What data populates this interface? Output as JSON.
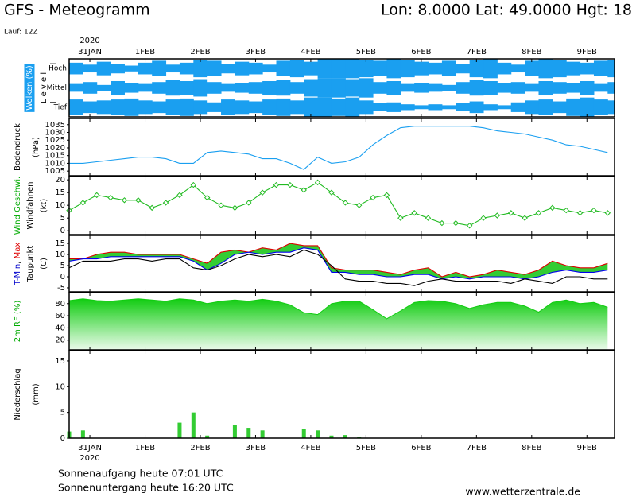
{
  "header": {
    "title": "GFS - Meteogramm",
    "location": "Lon: 8.0000 Lat: 49.0000 Hgt: 18",
    "run": "Lauf: 12Z"
  },
  "chart_data": {
    "type": "meteogram",
    "xlim": [
      0,
      237
    ],
    "x": [
      0,
      6,
      12,
      18,
      24,
      30,
      36,
      42,
      48,
      54,
      60,
      66,
      72,
      78,
      84,
      90,
      96,
      102,
      108,
      114,
      120,
      126,
      132,
      138,
      144,
      150,
      156,
      162,
      168,
      174,
      180,
      186,
      192,
      198,
      204,
      210,
      216,
      222,
      228,
      234
    ],
    "xticks": [
      {
        "value": 9,
        "label": "31JAN"
      },
      {
        "value": 33,
        "label": "1FEB"
      },
      {
        "value": 57,
        "label": "2FEB"
      },
      {
        "value": 81,
        "label": "3FEB"
      },
      {
        "value": 105,
        "label": "4FEB"
      },
      {
        "value": 129,
        "label": "5FEB"
      },
      {
        "value": 153,
        "label": "6FEB"
      },
      {
        "value": 177,
        "label": "7FEB"
      },
      {
        "value": 201,
        "label": "8FEB"
      },
      {
        "value": 225,
        "label": "9FEB"
      }
    ],
    "year_tick": {
      "value": 9,
      "label": "2020"
    },
    "panels": [
      {
        "type": "clouds",
        "cloud_color": "#1a9ff0",
        "ylabel": [
          [
            {
              "text": "Wolken (%)"
            }
          ],
          [
            {
              "text": "L e v e l"
            }
          ]
        ],
        "rows": [
          {
            "name": "Hoch",
            "values": [
              60,
              40,
              70,
              50,
              30,
              60,
              80,
              40,
              60,
              90,
              80,
              50,
              70,
              60,
              40,
              80,
              90,
              70,
              100,
              100,
              100,
              90,
              80,
              100,
              90,
              70,
              60,
              80,
              50,
              90,
              100,
              60,
              40,
              80,
              100,
              90,
              70,
              60,
              80,
              90
            ]
          },
          {
            "name": "Mittel",
            "values": [
              40,
              60,
              30,
              70,
              50,
              40,
              60,
              80,
              70,
              90,
              60,
              40,
              50,
              60,
              70,
              80,
              60,
              90,
              100,
              100,
              90,
              100,
              60,
              70,
              40,
              50,
              40,
              30,
              60,
              80,
              70,
              50,
              60,
              40,
              70,
              60,
              50,
              70,
              40,
              60
            ]
          },
          {
            "name": "Tief",
            "values": [
              80,
              60,
              70,
              80,
              90,
              70,
              60,
              80,
              90,
              70,
              50,
              80,
              70,
              60,
              80,
              90,
              70,
              100,
              100,
              90,
              100,
              70,
              40,
              50,
              30,
              20,
              30,
              20,
              40,
              60,
              30,
              20,
              50,
              70,
              80,
              60,
              90,
              100,
              80,
              70
            ]
          }
        ]
      },
      {
        "type": "line",
        "ylabel": [
          [
            {
              "text": "Bodendruck"
            }
          ],
          [
            {
              "text": "(hPa)"
            }
          ]
        ],
        "ylim": [
          1002,
          1039
        ],
        "yticks": [
          1005,
          1010,
          1015,
          1020,
          1025,
          1030,
          1035
        ],
        "series": [
          {
            "color": "#1a9ff0",
            "values": [
              1010,
              1010,
              1011,
              1012,
              1013,
              1014,
              1014,
              1013,
              1010,
              1010,
              1017,
              1018,
              1017,
              1016,
              1013,
              1013,
              1010,
              1006,
              1014,
              1010,
              1011,
              1014,
              1022,
              1028,
              1033,
              1034,
              1034,
              1034,
              1034,
              1034,
              1033,
              1031,
              1030,
              1029,
              1027,
              1025,
              1022,
              1021,
              1019,
              1017
            ]
          }
        ]
      },
      {
        "type": "line",
        "markers": true,
        "ylabel": [
          [
            {
              "text": "Wind Geschwi.",
              "color": "#00aa00"
            }
          ],
          [
            {
              "text": "Windfahnen"
            }
          ],
          [
            {
              "text": "(kt)"
            }
          ]
        ],
        "ylim": [
          -1.5,
          21.3
        ],
        "yticks": [
          0,
          5,
          10,
          15,
          20
        ],
        "series": [
          {
            "color": "#22bb22",
            "values": [
              8,
              11,
              14,
              13,
              12,
              12,
              9,
              11,
              14,
              18,
              13,
              10,
              9,
              11,
              15,
              18,
              18,
              16,
              19,
              15,
              11,
              10,
              13,
              14,
              5,
              7,
              5,
              3,
              3,
              2,
              5,
              6,
              7,
              5,
              7,
              9,
              8,
              7,
              8,
              7
            ]
          }
        ]
      },
      {
        "type": "band",
        "band_color": "#33cc33",
        "ylabel": [
          [
            {
              "text": "T-Min",
              "color": "#0000cc"
            },
            {
              "text": ", "
            },
            {
              "text": "Max",
              "color": "#dd0000"
            }
          ],
          [
            {
              "text": "Taupunkt"
            }
          ],
          [
            {
              "text": "(C)"
            }
          ]
        ],
        "ylim": [
          -6.8,
          18.6
        ],
        "yticks": [
          -5,
          0,
          5,
          10,
          15
        ],
        "series": [
          {
            "color": "#dd0000",
            "values": [
              8,
              8,
              10,
              11,
              11,
              10,
              10,
              10,
              10,
              8,
              6,
              11,
              12,
              11,
              13,
              12,
              15,
              14,
              14,
              4,
              3,
              3,
              3,
              2,
              1,
              3,
              4,
              0,
              2,
              0,
              1,
              3,
              2,
              1,
              3,
              7,
              5,
              4,
              4,
              6
            ]
          },
          {
            "color": "#0000ee",
            "values": [
              7,
              8,
              8,
              9,
              9,
              9,
              9,
              9,
              9,
              7,
              3,
              6,
              10,
              11,
              10,
              11,
              11,
              13,
              12,
              2,
              2,
              1,
              1,
              0,
              0,
              1,
              1,
              -1,
              0,
              -1,
              0,
              0,
              0,
              -1,
              0,
              2,
              3,
              2,
              2,
              3
            ]
          },
          {
            "color": "#000000",
            "values": [
              4,
              7,
              7,
              7,
              8,
              8,
              7,
              8,
              8,
              4,
              3,
              5,
              8,
              10,
              9,
              10,
              9,
              12,
              10,
              5,
              -1,
              -2,
              -2,
              -3,
              -3,
              -4,
              -2,
              -1,
              -2,
              -2,
              -2,
              -2,
              -3,
              -1,
              -2,
              -3,
              0,
              0,
              -1,
              -1
            ]
          }
        ]
      },
      {
        "type": "area",
        "ylabel": [
          [
            {
              "text": "2m RF (%)",
              "color": "#00aa00"
            }
          ]
        ],
        "ylim": [
          4,
          98
        ],
        "yticks": [
          20,
          40,
          60,
          80
        ],
        "series": [
          {
            "color": "#11cc11",
            "values": [
              85,
              88,
              85,
              84,
              86,
              88,
              86,
              84,
              88,
              86,
              80,
              84,
              86,
              84,
              87,
              84,
              78,
              65,
              62,
              80,
              84,
              84,
              70,
              55,
              68,
              82,
              85,
              84,
              80,
              72,
              78,
              82,
              82,
              76,
              66,
              82,
              86,
              80,
              82,
              74
            ]
          }
        ]
      },
      {
        "type": "bar",
        "ylabel": [
          [
            {
              "text": "Niederschlag"
            }
          ],
          [
            {
              "text": "(mm)"
            }
          ]
        ],
        "ylim": [
          0,
          17
        ],
        "yticks": [
          0,
          5,
          10,
          15
        ],
        "series": [
          {
            "color": "#33cc33",
            "values": [
              1.3,
              1.5,
              0,
              0,
              0,
              0,
              0,
              0,
              3,
              5,
              0.5,
              0,
              2.5,
              2,
              1.5,
              0,
              0,
              1.8,
              1.5,
              0.5,
              0.6,
              0.3,
              0,
              0,
              0,
              0,
              0,
              0,
              0,
              0,
              0,
              0,
              0,
              0,
              0,
              0,
              0,
              0,
              0,
              0
            ]
          }
        ]
      }
    ]
  },
  "footer": {
    "sunrise": "Sonnenaufgang heute 07:01 UTC",
    "sunset": "Sonnenuntergang heute 16:20 UTC",
    "source": "www.wetterzentrale.de"
  }
}
